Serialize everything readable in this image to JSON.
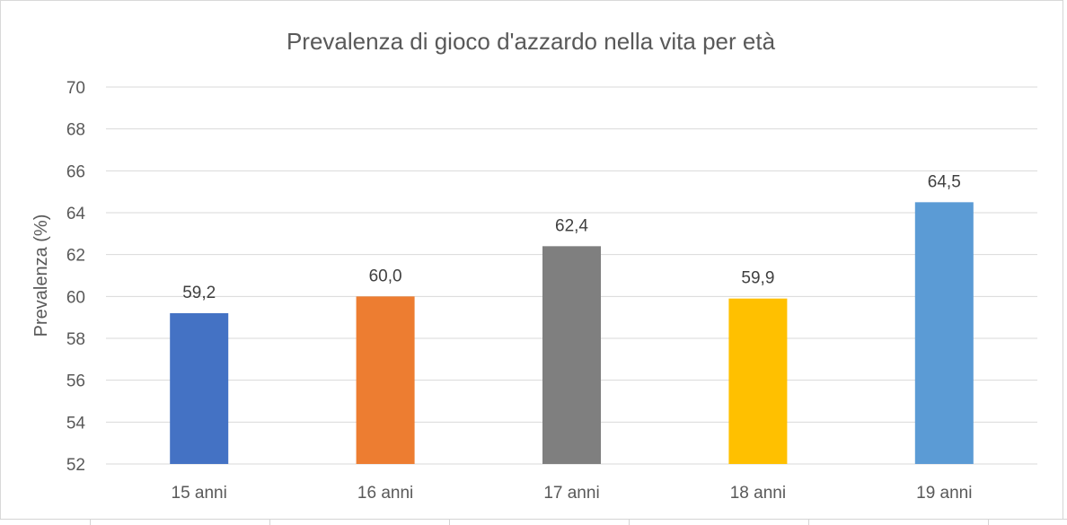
{
  "chart_data": {
    "type": "bar",
    "title": "Prevalenza di gioco d'azzardo nella vita per età",
    "xlabel": "",
    "ylabel": "Prevalenza (%)",
    "categories": [
      "15 anni",
      "16 anni",
      "17 anni",
      "18 anni",
      "19 anni"
    ],
    "values": [
      59.2,
      60.0,
      62.4,
      59.9,
      64.5
    ],
    "data_labels": [
      "59,2",
      "60,0",
      "62,4",
      "59,9",
      "64,5"
    ],
    "colors": [
      "#4472c4",
      "#ed7d31",
      "#7f7f7f",
      "#ffc000",
      "#5b9bd5"
    ],
    "ylim": [
      52,
      70
    ],
    "yticks": [
      "52",
      "54",
      "56",
      "58",
      "60",
      "62",
      "64",
      "66",
      "68",
      "70"
    ],
    "grid": true,
    "gridColor": "#d9d9d9",
    "legend": "none"
  }
}
